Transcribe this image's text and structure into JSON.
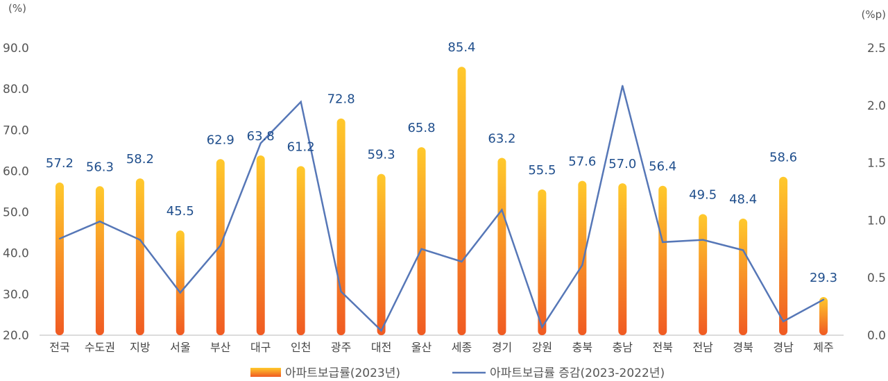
{
  "chart_data": {
    "type": "bar",
    "categories": [
      "전국",
      "수도권",
      "지방",
      "서울",
      "부산",
      "대구",
      "인천",
      "광주",
      "대전",
      "울산",
      "세종",
      "경기",
      "강원",
      "충북",
      "충남",
      "전북",
      "전남",
      "경북",
      "경남",
      "제주"
    ],
    "series": [
      {
        "name": "아파트보급률(2023년)",
        "type": "bar",
        "axis": "left",
        "values": [
          57.2,
          56.3,
          58.2,
          45.5,
          62.9,
          63.8,
          61.2,
          72.8,
          59.3,
          65.8,
          85.4,
          63.2,
          55.5,
          57.6,
          57.0,
          56.4,
          49.5,
          48.4,
          58.6,
          29.3
        ],
        "labels": [
          "57.2",
          "56.3",
          "58.2",
          "45.5",
          "62.9",
          "63.8",
          "61.2",
          "72.8",
          "59.3",
          "65.8",
          "85.4",
          "63.2",
          "55.5",
          "57.6",
          "57.0",
          "56.4",
          "49.5",
          "48.4",
          "58.6",
          "29.3"
        ]
      },
      {
        "name": "아파트보급률 증감(2023-2022년)",
        "type": "line",
        "axis": "right",
        "values": [
          0.84,
          0.99,
          0.83,
          0.37,
          0.78,
          1.67,
          2.03,
          0.38,
          0.04,
          0.75,
          0.64,
          1.09,
          0.07,
          0.61,
          2.17,
          0.81,
          0.83,
          0.74,
          0.12,
          0.31
        ]
      }
    ],
    "y_left": {
      "unit": "(%)",
      "ylim": [
        20,
        90
      ],
      "ticks": [
        "20.0",
        "30.0",
        "40.0",
        "50.0",
        "60.0",
        "70.0",
        "80.0",
        "90.0"
      ]
    },
    "y_right": {
      "unit": "(%p)",
      "ylim": [
        0,
        2.5
      ],
      "ticks": [
        "0.0",
        "0.5",
        "1.0",
        "1.5",
        "2.0",
        "2.5"
      ]
    },
    "colors": {
      "bar_top": "#ffc92c",
      "bar_bottom": "#f05a22",
      "line": "#5677b7",
      "label": "#1f4e8c",
      "axis": "#d0d0d0"
    },
    "legend_position": "bottom",
    "grid": false
  }
}
